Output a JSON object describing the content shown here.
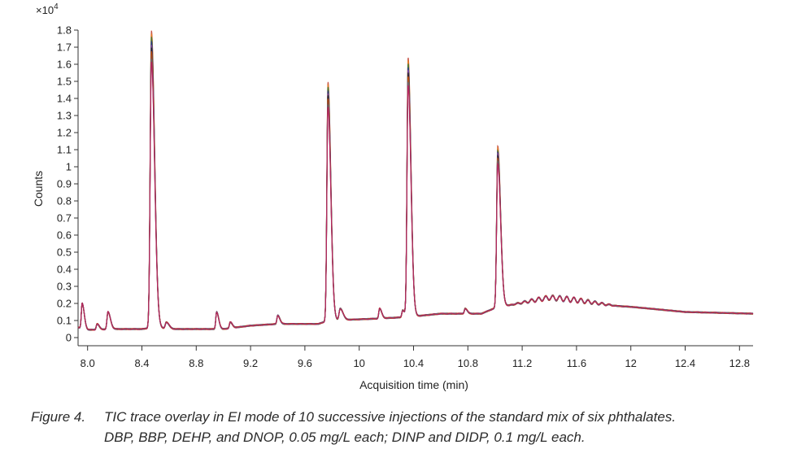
{
  "chart_data": {
    "type": "line",
    "title": "",
    "xlabel": "Acquisition time (min)",
    "ylabel": "Counts",
    "y_multiplier": "×10",
    "y_multiplier_exp": "4",
    "xlim": [
      7.93,
      12.9
    ],
    "ylim": [
      -0.05,
      1.8
    ],
    "x_ticks": [
      "8.0",
      "8.4",
      "8.8",
      "9.2",
      "9.6",
      "10",
      "10.4",
      "10.8",
      "11.2",
      "11.6",
      "12",
      "12.4",
      "12.8"
    ],
    "x_tick_values": [
      8.0,
      8.4,
      8.8,
      9.2,
      9.6,
      10.0,
      10.4,
      10.8,
      11.2,
      11.6,
      12.0,
      12.4,
      12.8
    ],
    "y_ticks": [
      "0",
      "0.1",
      "0.2",
      "0.3",
      "0.4",
      "0.5",
      "0.6",
      "0.7",
      "0.8",
      "0.9",
      "1",
      "1.1",
      "1.2",
      "1.3",
      "1.4",
      "1.5",
      "1.6",
      "1.7",
      "1.8"
    ],
    "y_tick_values": [
      0,
      0.1,
      0.2,
      0.3,
      0.4,
      0.5,
      0.6,
      0.7,
      0.8,
      0.9,
      1.0,
      1.1,
      1.2,
      1.3,
      1.4,
      1.5,
      1.6,
      1.7,
      1.8
    ],
    "series_colors": [
      "#c0392b",
      "#e67e22",
      "#2e7d32",
      "#1f3a93",
      "#8e44ad",
      "#222222",
      "#d35400",
      "#a0522d",
      "#5d6d7e",
      "#c2185b"
    ],
    "series_count": 10,
    "baseline": [
      [
        7.93,
        0.06
      ],
      [
        8.0,
        0.045
      ],
      [
        8.2,
        0.05
      ],
      [
        8.4,
        0.05
      ],
      [
        8.5,
        0.06
      ],
      [
        8.6,
        0.05
      ],
      [
        9.0,
        0.05
      ],
      [
        9.2,
        0.07
      ],
      [
        9.4,
        0.08
      ],
      [
        9.7,
        0.08
      ],
      [
        9.77,
        0.1
      ],
      [
        10.1,
        0.11
      ],
      [
        10.35,
        0.12
      ],
      [
        10.6,
        0.14
      ],
      [
        10.9,
        0.14
      ],
      [
        11.02,
        0.18
      ],
      [
        11.4,
        0.22
      ],
      [
        11.8,
        0.19
      ],
      [
        12.0,
        0.18
      ],
      [
        12.4,
        0.15
      ],
      [
        12.9,
        0.14
      ]
    ],
    "peaks": [
      {
        "x": 7.96,
        "y": 0.2,
        "w": 0.006
      },
      {
        "x": 8.07,
        "y": 0.08,
        "w": 0.006
      },
      {
        "x": 8.15,
        "y": 0.15,
        "w": 0.007
      },
      {
        "x": 8.47,
        "y": 1.8,
        "w": 0.009
      },
      {
        "x": 8.58,
        "y": 0.09,
        "w": 0.008
      },
      {
        "x": 8.95,
        "y": 0.15,
        "w": 0.006
      },
      {
        "x": 9.05,
        "y": 0.09,
        "w": 0.006
      },
      {
        "x": 9.4,
        "y": 0.13,
        "w": 0.006
      },
      {
        "x": 9.77,
        "y": 1.5,
        "w": 0.008
      },
      {
        "x": 9.86,
        "y": 0.17,
        "w": 0.008
      },
      {
        "x": 10.15,
        "y": 0.17,
        "w": 0.006
      },
      {
        "x": 10.32,
        "y": 0.16,
        "w": 0.006
      },
      {
        "x": 10.36,
        "y": 1.64,
        "w": 0.008
      },
      {
        "x": 10.78,
        "y": 0.17,
        "w": 0.006
      },
      {
        "x": 10.9,
        "y": 0.14,
        "w": 0.006
      },
      {
        "x": 11.02,
        "y": 1.12,
        "w": 0.008
      }
    ],
    "wiggle_region": [
      11.1,
      11.9
    ],
    "legend": "none",
    "grid": false
  },
  "caption": {
    "number": "Figure 4.",
    "line1": "TIC trace overlay in EI mode of 10 successive injections of the standard mix of six phthalates.",
    "line2": "DBP, BBP, DEHP, and DNOP, 0.05 mg/L each; DINP and DIDP, 0.1 mg/L each."
  }
}
